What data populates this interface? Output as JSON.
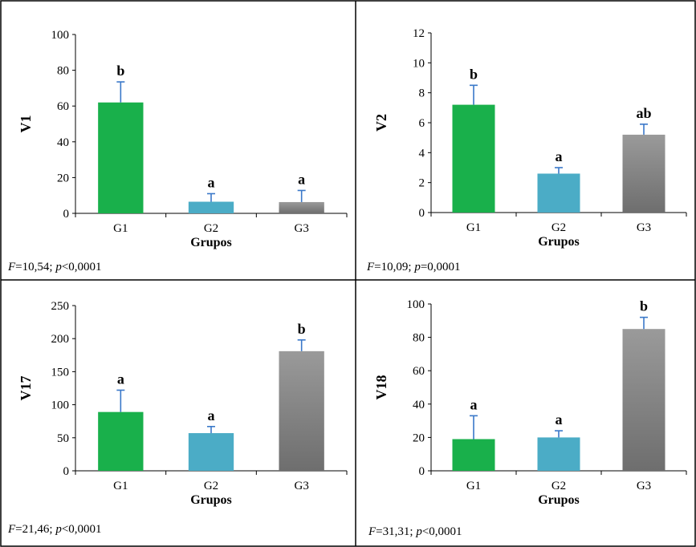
{
  "colors": {
    "G1": "#19b04b",
    "G2": "#4bacc6",
    "G3": "#808080",
    "error": "#3a78c9",
    "frame": "#000000"
  },
  "chart_data": [
    {
      "type": "bar",
      "categories": [
        "G1",
        "G2",
        "G3"
      ],
      "values": [
        62,
        6.5,
        6.3
      ],
      "errors": [
        11.5,
        4.5,
        6.5
      ],
      "letters": [
        "b",
        "a",
        "a"
      ],
      "ylabel": "V1",
      "xlabel": "Grupos",
      "ylim": [
        0,
        100
      ],
      "yticks": [
        "0",
        "20",
        "40",
        "60",
        "80",
        "100"
      ],
      "stat": {
        "F_label": "F",
        "F_value": "=10,54;",
        "p_label": "p",
        "p_value": "<0,0001"
      }
    },
    {
      "type": "bar",
      "categories": [
        "G1",
        "G2",
        "G3"
      ],
      "values": [
        7.2,
        2.6,
        5.2
      ],
      "errors": [
        1.3,
        0.4,
        0.7
      ],
      "letters": [
        "b",
        "a",
        "ab"
      ],
      "ylabel": "V2",
      "xlabel": "Grupos",
      "ylim": [
        0,
        12
      ],
      "yticks": [
        "0",
        "2",
        "4",
        "6",
        "8",
        "10",
        "12"
      ],
      "stat": {
        "F_label": "F",
        "F_value": "=10,09;",
        "p_label": "p",
        "p_value": "=0,0001"
      }
    },
    {
      "type": "bar",
      "categories": [
        "G1",
        "G2",
        "G3"
      ],
      "values": [
        89,
        57,
        181
      ],
      "errors": [
        33,
        10,
        17
      ],
      "letters": [
        "a",
        "a",
        "b"
      ],
      "ylabel": "V17",
      "xlabel": "Grupos",
      "ylim": [
        0,
        250
      ],
      "yticks": [
        "0",
        "50",
        "100",
        "150",
        "200",
        "250"
      ],
      "stat": {
        "F_label": "F",
        "F_value": "=21,46;",
        "p_label": "p",
        "p_value": "<0,0001"
      }
    },
    {
      "type": "bar",
      "categories": [
        "G1",
        "G2",
        "G3"
      ],
      "values": [
        19,
        20,
        85
      ],
      "errors": [
        14,
        4,
        7
      ],
      "letters": [
        "a",
        "a",
        "b"
      ],
      "ylabel": "V18",
      "xlabel": "Grupos",
      "ylim": [
        0,
        100
      ],
      "yticks": [
        "0",
        "20",
        "40",
        "60",
        "80",
        "100"
      ],
      "stat": {
        "F_label": "F",
        "F_value": "=31,31;",
        "p_label": "p",
        "p_value": "<0,0001"
      }
    }
  ]
}
